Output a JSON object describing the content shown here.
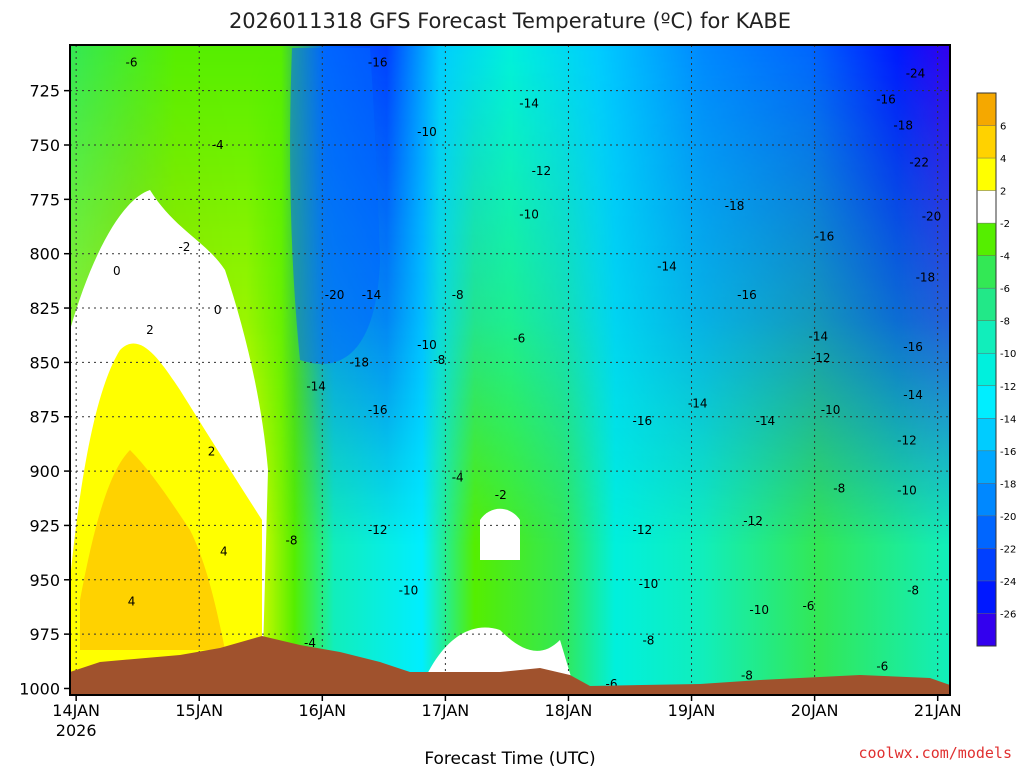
{
  "chart_data": {
    "type": "heatmap",
    "title": "2026011318 GFS Forecast Temperature (ºC) for KABE",
    "xlabel": "Forecast Time (UTC)",
    "ylabel": "",
    "credit": "coolwx.com/models",
    "y_ticks": [
      725,
      750,
      775,
      800,
      825,
      850,
      875,
      900,
      925,
      950,
      975,
      1000
    ],
    "y_range": [
      704,
      1003
    ],
    "y_inverted": true,
    "x_ticks": [
      {
        "label": "14JAN",
        "sublabel": "2026",
        "day": 0
      },
      {
        "label": "15JAN",
        "day": 1
      },
      {
        "label": "16JAN",
        "day": 2
      },
      {
        "label": "17JAN",
        "day": 3
      },
      {
        "label": "18JAN",
        "day": 4
      },
      {
        "label": "19JAN",
        "day": 5
      },
      {
        "label": "20JAN",
        "day": 6
      },
      {
        "label": "21JAN",
        "day": 7
      }
    ],
    "x_range_days": [
      -0.05,
      7.1
    ],
    "colorbar": {
      "labels": [
        "6",
        "4",
        "2",
        "-2",
        "-4",
        "-6",
        "-8",
        "-10",
        "-12",
        "-14",
        "-16",
        "-18",
        "-20",
        "-22",
        "-24",
        "-26"
      ],
      "colors": [
        "#f5a800",
        "#ffd200",
        "#ffff00",
        "#ffffff",
        "#55ee00",
        "#33e855",
        "#22e888",
        "#11eebb",
        "#00f0dd",
        "#00eeff",
        "#00ccff",
        "#00a8ff",
        "#0088ff",
        "#0066ff",
        "#0040ff",
        "#0018ff",
        "#3300ee"
      ]
    },
    "contour_labels": [
      {
        "text": "-6",
        "day": 0.45,
        "p": 712
      },
      {
        "text": "-16",
        "day": 2.45,
        "p": 712
      },
      {
        "text": "-24",
        "day": 6.82,
        "p": 717
      },
      {
        "text": "-16",
        "day": 6.58,
        "p": 729
      },
      {
        "text": "-14",
        "day": 3.68,
        "p": 731
      },
      {
        "text": "-18",
        "day": 6.72,
        "p": 741
      },
      {
        "text": "-10",
        "day": 2.85,
        "p": 744
      },
      {
        "text": "-4",
        "day": 1.15,
        "p": 750
      },
      {
        "text": "-12",
        "day": 3.78,
        "p": 762
      },
      {
        "text": "-22",
        "day": 6.85,
        "p": 758
      },
      {
        "text": "-10",
        "day": 3.68,
        "p": 782
      },
      {
        "text": "-18",
        "day": 5.35,
        "p": 778
      },
      {
        "text": "-20",
        "day": 6.95,
        "p": 783
      },
      {
        "text": "-2",
        "day": 0.88,
        "p": 797
      },
      {
        "text": "-16",
        "day": 6.08,
        "p": 792
      },
      {
        "text": "0",
        "day": 0.33,
        "p": 808
      },
      {
        "text": "-14",
        "day": 4.8,
        "p": 806
      },
      {
        "text": "-18",
        "day": 6.9,
        "p": 811
      },
      {
        "text": "-20",
        "day": 2.1,
        "p": 819
      },
      {
        "text": "-14",
        "day": 2.4,
        "p": 819
      },
      {
        "text": "-8",
        "day": 3.1,
        "p": 819
      },
      {
        "text": "-16",
        "day": 5.45,
        "p": 819
      },
      {
        "text": "0",
        "day": 1.15,
        "p": 826
      },
      {
        "text": "2",
        "day": 0.6,
        "p": 835
      },
      {
        "text": "-6",
        "day": 3.6,
        "p": 839
      },
      {
        "text": "-14",
        "day": 6.03,
        "p": 838
      },
      {
        "text": "-10",
        "day": 2.85,
        "p": 842
      },
      {
        "text": "-8",
        "day": 2.95,
        "p": 849
      },
      {
        "text": "-12",
        "day": 6.05,
        "p": 848
      },
      {
        "text": "-18",
        "day": 2.3,
        "p": 850
      },
      {
        "text": "-16",
        "day": 6.8,
        "p": 843
      },
      {
        "text": "-14",
        "day": 1.95,
        "p": 861
      },
      {
        "text": "-16",
        "day": 2.45,
        "p": 872
      },
      {
        "text": "-10",
        "day": 6.13,
        "p": 872
      },
      {
        "text": "-14",
        "day": 6.8,
        "p": 865
      },
      {
        "text": "-16",
        "day": 4.6,
        "p": 877
      },
      {
        "text": "-14",
        "day": 5.05,
        "p": 869
      },
      {
        "text": "-14",
        "day": 5.6,
        "p": 877
      },
      {
        "text": "2",
        "day": 1.1,
        "p": 891
      },
      {
        "text": "-12",
        "day": 6.75,
        "p": 886
      },
      {
        "text": "-4",
        "day": 3.1,
        "p": 903
      },
      {
        "text": "-2",
        "day": 3.45,
        "p": 911
      },
      {
        "text": "-8",
        "day": 6.2,
        "p": 908
      },
      {
        "text": "-10",
        "day": 6.75,
        "p": 909
      },
      {
        "text": "-12",
        "day": 2.45,
        "p": 927
      },
      {
        "text": "-12",
        "day": 4.6,
        "p": 927
      },
      {
        "text": "-12",
        "day": 5.5,
        "p": 923
      },
      {
        "text": "-8",
        "day": 1.75,
        "p": 932
      },
      {
        "text": "4",
        "day": 1.2,
        "p": 937
      },
      {
        "text": "-10",
        "day": 2.7,
        "p": 955
      },
      {
        "text": "-10",
        "day": 4.65,
        "p": 952
      },
      {
        "text": "-8",
        "day": 6.8,
        "p": 955
      },
      {
        "text": "4",
        "day": 0.45,
        "p": 960
      },
      {
        "text": "-6",
        "day": 5.95,
        "p": 962
      },
      {
        "text": "-10",
        "day": 5.55,
        "p": 964
      },
      {
        "text": "-4",
        "day": 1.9,
        "p": 979
      },
      {
        "text": "-8",
        "day": 4.65,
        "p": 978
      },
      {
        "text": "-6",
        "day": 6.55,
        "p": 990
      },
      {
        "text": "-8",
        "day": 5.45,
        "p": 994
      },
      {
        "text": "-6",
        "day": 4.35,
        "p": 998
      }
    ]
  }
}
